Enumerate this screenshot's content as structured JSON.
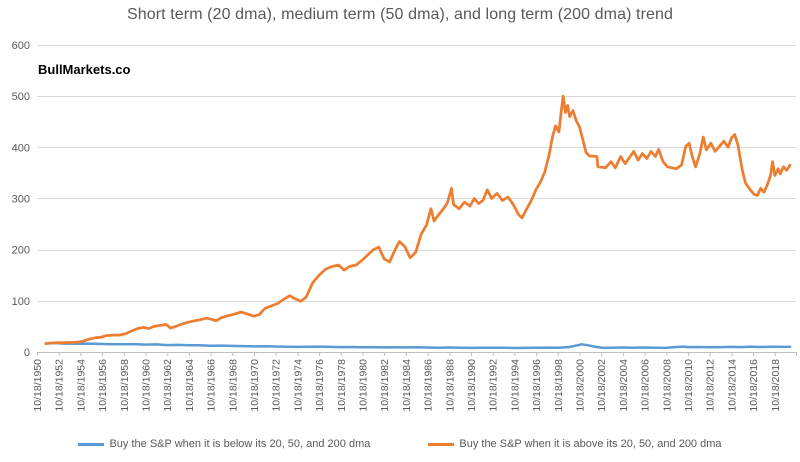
{
  "chart_data": {
    "type": "line",
    "title": "Short term (20 dma), medium term (50 dma), and long term (200 dma) trend",
    "watermark": "BullMarkets.co",
    "legend_position": "bottom",
    "grid": true,
    "y_axis": {
      "min": 0,
      "max": 600,
      "tick_step": 100,
      "ticks": [
        0,
        100,
        200,
        300,
        400,
        500,
        600
      ]
    },
    "x_axis": {
      "first_year": 1950,
      "label_step_years": 2,
      "tick_labels": [
        "10/18/1950",
        "10/18/1952",
        "10/18/1954",
        "10/18/1956",
        "10/18/1958",
        "10/18/1960",
        "10/18/1962",
        "10/18/1964",
        "10/18/1966",
        "10/18/1968",
        "10/18/1970",
        "10/18/1972",
        "10/18/1974",
        "10/18/1976",
        "10/18/1978",
        "10/18/1980",
        "10/18/1982",
        "10/18/1984",
        "10/18/1986",
        "10/18/1988",
        "10/18/1990",
        "10/18/1992",
        "10/18/1994",
        "10/18/1996",
        "10/18/1998",
        "10/18/2000",
        "10/18/2002",
        "10/18/2004",
        "10/18/2006",
        "10/18/2008",
        "10/18/2010",
        "10/18/2012",
        "10/18/2014",
        "10/18/2016",
        "10/18/2018"
      ]
    },
    "series": [
      {
        "name": "Buy the S&P when it is below its 20, 50, and 200 dma",
        "color": "#5B9BD5",
        "points": [
          [
            1950.8,
            16.5
          ],
          [
            1951.5,
            17.5
          ],
          [
            1952.5,
            16.5
          ],
          [
            1953.5,
            16
          ],
          [
            1955,
            16.5
          ],
          [
            1956.5,
            15.5
          ],
          [
            1958,
            15
          ],
          [
            1959,
            15.5
          ],
          [
            1960,
            14.5
          ],
          [
            1961,
            14.8
          ],
          [
            1962,
            13.5
          ],
          [
            1963,
            13.8
          ],
          [
            1964,
            13.2
          ],
          [
            1965,
            13
          ],
          [
            1966,
            12.3
          ],
          [
            1967,
            12.5
          ],
          [
            1968,
            12
          ],
          [
            1969,
            11.5
          ],
          [
            1970,
            11
          ],
          [
            1971,
            11.2
          ],
          [
            1972,
            10.8
          ],
          [
            1973,
            10.4
          ],
          [
            1974,
            10
          ],
          [
            1975,
            10.3
          ],
          [
            1976,
            10.5
          ],
          [
            1977,
            10
          ],
          [
            1978,
            9.6
          ],
          [
            1979,
            9.8
          ],
          [
            1980,
            9.4
          ],
          [
            1981,
            9.6
          ],
          [
            1982,
            9
          ],
          [
            1983,
            9.3
          ],
          [
            1984,
            9
          ],
          [
            1985,
            9.2
          ],
          [
            1986,
            8.8
          ],
          [
            1987,
            8.4
          ],
          [
            1988,
            8.8
          ],
          [
            1989,
            8.5
          ],
          [
            1990,
            8
          ],
          [
            1991,
            8.4
          ],
          [
            1992,
            8.2
          ],
          [
            1993,
            8.4
          ],
          [
            1994,
            7.8
          ],
          [
            1995,
            8
          ],
          [
            1996,
            8.2
          ],
          [
            1997,
            8.6
          ],
          [
            1998,
            8.2
          ],
          [
            1999,
            9.5
          ],
          [
            1999.8,
            13
          ],
          [
            2000.2,
            15
          ],
          [
            2000.8,
            13
          ],
          [
            2001.5,
            10
          ],
          [
            2002.2,
            8
          ],
          [
            2003,
            8.5
          ],
          [
            2004,
            8.8
          ],
          [
            2005,
            8.5
          ],
          [
            2006,
            8.8
          ],
          [
            2007,
            8.5
          ],
          [
            2008,
            8
          ],
          [
            2008.8,
            9.5
          ],
          [
            2009.5,
            10.5
          ],
          [
            2010,
            9.5
          ],
          [
            2011,
            9.8
          ],
          [
            2012,
            9.4
          ],
          [
            2013,
            9.6
          ],
          [
            2014,
            10
          ],
          [
            2015,
            9.6
          ],
          [
            2015.8,
            10.5
          ],
          [
            2016.5,
            9.8
          ],
          [
            2017,
            10
          ],
          [
            2018,
            10.2
          ],
          [
            2019,
            10
          ],
          [
            2019.4,
            10.2
          ]
        ]
      },
      {
        "name": "Buy the S&P when it is above its 20, 50, and 200 dma",
        "color": "#ED7D31",
        "points": [
          [
            1950.8,
            16.5
          ],
          [
            1951.3,
            17.5
          ],
          [
            1951.8,
            18
          ],
          [
            1952.4,
            18
          ],
          [
            1953,
            18.5
          ],
          [
            1953.6,
            19
          ],
          [
            1954.2,
            21
          ],
          [
            1954.8,
            25
          ],
          [
            1955.4,
            28
          ],
          [
            1955.9,
            29
          ],
          [
            1956.4,
            32
          ],
          [
            1957,
            33
          ],
          [
            1957.6,
            33
          ],
          [
            1958.2,
            36
          ],
          [
            1958.7,
            41
          ],
          [
            1959.3,
            46
          ],
          [
            1959.8,
            48
          ],
          [
            1960.3,
            46
          ],
          [
            1960.8,
            50
          ],
          [
            1961.4,
            52
          ],
          [
            1961.9,
            54
          ],
          [
            1962.3,
            47
          ],
          [
            1962.8,
            50
          ],
          [
            1963.4,
            55
          ],
          [
            1963.9,
            58
          ],
          [
            1964.5,
            61
          ],
          [
            1965,
            63
          ],
          [
            1965.6,
            66
          ],
          [
            1966.1,
            64
          ],
          [
            1966.5,
            61
          ],
          [
            1967,
            67
          ],
          [
            1967.6,
            71
          ],
          [
            1968.2,
            74
          ],
          [
            1968.8,
            78
          ],
          [
            1969.4,
            74
          ],
          [
            1970,
            70
          ],
          [
            1970.5,
            73
          ],
          [
            1971,
            85
          ],
          [
            1971.6,
            90
          ],
          [
            1972.2,
            95
          ],
          [
            1972.8,
            104
          ],
          [
            1973.3,
            110
          ],
          [
            1973.8,
            104
          ],
          [
            1974.3,
            99
          ],
          [
            1974.8,
            107
          ],
          [
            1975.4,
            135
          ],
          [
            1976,
            150
          ],
          [
            1976.6,
            162
          ],
          [
            1977.2,
            167
          ],
          [
            1977.8,
            170
          ],
          [
            1978.3,
            160
          ],
          [
            1978.8,
            167
          ],
          [
            1979.4,
            170
          ],
          [
            1980,
            180
          ],
          [
            1980.5,
            190
          ],
          [
            1981,
            200
          ],
          [
            1981.5,
            205
          ],
          [
            1982,
            182
          ],
          [
            1982.5,
            176
          ],
          [
            1983,
            200
          ],
          [
            1983.4,
            216
          ],
          [
            1983.9,
            206
          ],
          [
            1984.4,
            184
          ],
          [
            1984.9,
            195
          ],
          [
            1985.4,
            230
          ],
          [
            1985.9,
            248
          ],
          [
            1986.3,
            280
          ],
          [
            1986.6,
            256
          ],
          [
            1987,
            268
          ],
          [
            1987.4,
            278
          ],
          [
            1987.8,
            290
          ],
          [
            1988.2,
            320
          ],
          [
            1988.4,
            288
          ],
          [
            1988.9,
            280
          ],
          [
            1989.4,
            293
          ],
          [
            1989.9,
            285
          ],
          [
            1990.3,
            300
          ],
          [
            1990.7,
            290
          ],
          [
            1991.1,
            296
          ],
          [
            1991.5,
            317
          ],
          [
            1991.9,
            300
          ],
          [
            1992.4,
            310
          ],
          [
            1992.9,
            296
          ],
          [
            1993.4,
            303
          ],
          [
            1993.9,
            288
          ],
          [
            1994.4,
            268
          ],
          [
            1994.7,
            262
          ],
          [
            1995.1,
            278
          ],
          [
            1995.6,
            298
          ],
          [
            1996,
            318
          ],
          [
            1996.4,
            332
          ],
          [
            1996.8,
            352
          ],
          [
            1997.2,
            385
          ],
          [
            1997.5,
            420
          ],
          [
            1997.8,
            442
          ],
          [
            1998.1,
            430
          ],
          [
            1998.3,
            468
          ],
          [
            1998.5,
            500
          ],
          [
            1998.7,
            468
          ],
          [
            1998.9,
            482
          ],
          [
            1999.1,
            460
          ],
          [
            1999.4,
            472
          ],
          [
            1999.7,
            452
          ],
          [
            2000,
            440
          ],
          [
            2000.3,
            415
          ],
          [
            2000.6,
            390
          ],
          [
            2000.9,
            383
          ],
          [
            2001.6,
            382
          ],
          [
            2001.7,
            362
          ],
          [
            2002.4,
            360
          ],
          [
            2002.9,
            372
          ],
          [
            2003.3,
            360
          ],
          [
            2003.8,
            382
          ],
          [
            2004.2,
            368
          ],
          [
            2004.6,
            380
          ],
          [
            2005,
            392
          ],
          [
            2005.4,
            375
          ],
          [
            2005.8,
            388
          ],
          [
            2006.2,
            378
          ],
          [
            2006.6,
            392
          ],
          [
            2007,
            382
          ],
          [
            2007.3,
            396
          ],
          [
            2007.7,
            372
          ],
          [
            2008.1,
            362
          ],
          [
            2008.9,
            358
          ],
          [
            2009.4,
            365
          ],
          [
            2009.8,
            402
          ],
          [
            2010.1,
            408
          ],
          [
            2010.4,
            382
          ],
          [
            2010.7,
            362
          ],
          [
            2011.1,
            388
          ],
          [
            2011.4,
            420
          ],
          [
            2011.7,
            395
          ],
          [
            2012.1,
            408
          ],
          [
            2012.5,
            392
          ],
          [
            2012.9,
            402
          ],
          [
            2013.3,
            412
          ],
          [
            2013.7,
            400
          ],
          [
            2014,
            418
          ],
          [
            2014.3,
            425
          ],
          [
            2014.6,
            405
          ],
          [
            2015,
            355
          ],
          [
            2015.3,
            330
          ],
          [
            2015.7,
            318
          ],
          [
            2016.1,
            308
          ],
          [
            2016.4,
            306
          ],
          [
            2016.7,
            320
          ],
          [
            2017,
            312
          ],
          [
            2017.3,
            326
          ],
          [
            2017.6,
            345
          ],
          [
            2017.8,
            372
          ],
          [
            2018,
            345
          ],
          [
            2018.3,
            358
          ],
          [
            2018.5,
            348
          ],
          [
            2018.8,
            362
          ],
          [
            2019.1,
            355
          ],
          [
            2019.4,
            365
          ]
        ]
      }
    ]
  },
  "colors": {
    "title_text": "#595959",
    "axis_label_text": "#595959",
    "gridline": "#D9D9D9",
    "axis_line": "#BFBFBF"
  }
}
